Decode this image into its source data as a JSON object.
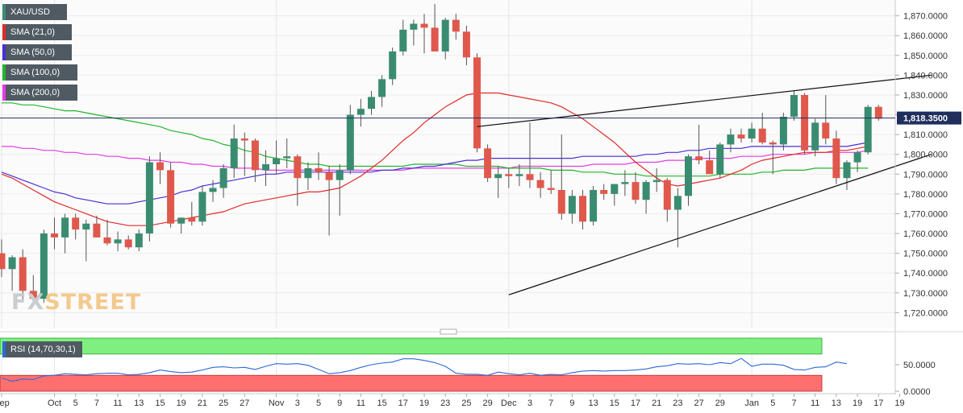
{
  "legend": [
    {
      "label": "XAU/USD",
      "color": "#3a8c71"
    },
    {
      "label": "SMA (21,0)",
      "color": "#e22a2a"
    },
    {
      "label": "SMA (50,0)",
      "color": "#4b2fd6"
    },
    {
      "label": "SMA (100,0)",
      "color": "#22b52b"
    },
    {
      "label": "SMA (200,0)",
      "color": "#e43ce4"
    }
  ],
  "watermark": {
    "part1": "FX",
    "part2": "STREET"
  },
  "rsi": {
    "label": "RSI (14,70,30,1)",
    "y_ticks": [
      "50.0000",
      "0.0000"
    ],
    "values": [
      25,
      19,
      23,
      22,
      29,
      30,
      33,
      32,
      31,
      33,
      34,
      34,
      31,
      32,
      35,
      40,
      37,
      35,
      36,
      40,
      45,
      46,
      44,
      45,
      41,
      47,
      52,
      51,
      52,
      49,
      41,
      33,
      35,
      39,
      45,
      50,
      53,
      55,
      61,
      61,
      58,
      54,
      47,
      34,
      32,
      32,
      30,
      36,
      33,
      31,
      34,
      30,
      32,
      31,
      35,
      38,
      39,
      38,
      39,
      39,
      40,
      42,
      46,
      48,
      52,
      51,
      52,
      50,
      54,
      52,
      62,
      47,
      51,
      51,
      49,
      41,
      40,
      45,
      46,
      55,
      52
    ]
  },
  "chart_data": {
    "type": "candlestick",
    "symbol": "XAU/USD",
    "last_price": "1,818.3500",
    "y_ticks": [
      "1,870.0000",
      "1,860.0000",
      "1,850.0000",
      "1,840.0000",
      "1,830.0000",
      "1,820.0000",
      "1,810.0000",
      "1,800.0000",
      "1,790.0000",
      "1,780.0000",
      "1,770.0000",
      "1,760.0000",
      "1,750.0000",
      "1,740.0000",
      "1,730.0000",
      "1,720.0000"
    ],
    "ylim": [
      1712,
      1878
    ],
    "x_labels": [
      {
        "label": "Sep",
        "i": 0
      },
      {
        "label": "Oct",
        "i": 5
      },
      {
        "label": "5",
        "i": 7
      },
      {
        "label": "7",
        "i": 9
      },
      {
        "label": "11",
        "i": 11
      },
      {
        "label": "13",
        "i": 13
      },
      {
        "label": "15",
        "i": 15
      },
      {
        "label": "19",
        "i": 17
      },
      {
        "label": "21",
        "i": 19
      },
      {
        "label": "25",
        "i": 21
      },
      {
        "label": "27",
        "i": 23
      },
      {
        "label": "Nov",
        "i": 26
      },
      {
        "label": "3",
        "i": 28
      },
      {
        "label": "5",
        "i": 30
      },
      {
        "label": "9",
        "i": 32
      },
      {
        "label": "11",
        "i": 34
      },
      {
        "label": "15",
        "i": 36
      },
      {
        "label": "17",
        "i": 38
      },
      {
        "label": "19",
        "i": 40
      },
      {
        "label": "23",
        "i": 42
      },
      {
        "label": "25",
        "i": 44
      },
      {
        "label": "29",
        "i": 46
      },
      {
        "label": "Dec",
        "i": 48
      },
      {
        "label": "3",
        "i": 50
      },
      {
        "label": "7",
        "i": 52
      },
      {
        "label": "9",
        "i": 54
      },
      {
        "label": "13",
        "i": 56
      },
      {
        "label": "15",
        "i": 58
      },
      {
        "label": "17",
        "i": 60
      },
      {
        "label": "21",
        "i": 62
      },
      {
        "label": "23",
        "i": 64
      },
      {
        "label": "27",
        "i": 66
      },
      {
        "label": "29",
        "i": 68
      },
      {
        "label": "Jan",
        "i": 71
      },
      {
        "label": "5",
        "i": 73
      },
      {
        "label": "7",
        "i": 75
      },
      {
        "label": "11",
        "i": 77
      },
      {
        "label": "13",
        "i": 79
      },
      {
        "label": "19",
        "i": 81
      },
      {
        "label": "17",
        "i": 83
      },
      {
        "label": "19",
        "i": 85
      }
    ],
    "candles": [
      {
        "o": 1750,
        "h": 1757,
        "l": 1738,
        "c": 1742
      },
      {
        "o": 1742,
        "h": 1749,
        "l": 1731,
        "c": 1748
      },
      {
        "o": 1748,
        "h": 1752,
        "l": 1726,
        "c": 1731
      },
      {
        "o": 1731,
        "h": 1739,
        "l": 1724,
        "c": 1727
      },
      {
        "o": 1727,
        "h": 1762,
        "l": 1725,
        "c": 1760
      },
      {
        "o": 1760,
        "h": 1768,
        "l": 1752,
        "c": 1758
      },
      {
        "o": 1758,
        "h": 1770,
        "l": 1750,
        "c": 1768
      },
      {
        "o": 1768,
        "h": 1770,
        "l": 1757,
        "c": 1762
      },
      {
        "o": 1762,
        "h": 1767,
        "l": 1746,
        "c": 1765
      },
      {
        "o": 1765,
        "h": 1769,
        "l": 1758,
        "c": 1758
      },
      {
        "o": 1758,
        "h": 1767,
        "l": 1754,
        "c": 1755
      },
      {
        "o": 1755,
        "h": 1761,
        "l": 1751,
        "c": 1757
      },
      {
        "o": 1757,
        "h": 1759,
        "l": 1752,
        "c": 1753
      },
      {
        "o": 1753,
        "h": 1762,
        "l": 1751,
        "c": 1760
      },
      {
        "o": 1760,
        "h": 1799,
        "l": 1756,
        "c": 1796
      },
      {
        "o": 1796,
        "h": 1801,
        "l": 1785,
        "c": 1792
      },
      {
        "o": 1792,
        "h": 1796,
        "l": 1763,
        "c": 1765
      },
      {
        "o": 1765,
        "h": 1768,
        "l": 1760,
        "c": 1768
      },
      {
        "o": 1768,
        "h": 1776,
        "l": 1764,
        "c": 1766
      },
      {
        "o": 1766,
        "h": 1784,
        "l": 1764,
        "c": 1781
      },
      {
        "o": 1781,
        "h": 1787,
        "l": 1776,
        "c": 1783
      },
      {
        "o": 1783,
        "h": 1795,
        "l": 1778,
        "c": 1793
      },
      {
        "o": 1793,
        "h": 1815,
        "l": 1788,
        "c": 1808
      },
      {
        "o": 1808,
        "h": 1811,
        "l": 1789,
        "c": 1807
      },
      {
        "o": 1807,
        "h": 1808,
        "l": 1786,
        "c": 1792
      },
      {
        "o": 1792,
        "h": 1802,
        "l": 1784,
        "c": 1795
      },
      {
        "o": 1795,
        "h": 1807,
        "l": 1790,
        "c": 1798
      },
      {
        "o": 1798,
        "h": 1808,
        "l": 1793,
        "c": 1799
      },
      {
        "o": 1799,
        "h": 1800,
        "l": 1774,
        "c": 1788
      },
      {
        "o": 1788,
        "h": 1796,
        "l": 1782,
        "c": 1793
      },
      {
        "o": 1793,
        "h": 1801,
        "l": 1787,
        "c": 1791
      },
      {
        "o": 1791,
        "h": 1794,
        "l": 1759,
        "c": 1787
      },
      {
        "o": 1787,
        "h": 1795,
        "l": 1769,
        "c": 1792
      },
      {
        "o": 1792,
        "h": 1825,
        "l": 1790,
        "c": 1820
      },
      {
        "o": 1820,
        "h": 1828,
        "l": 1814,
        "c": 1823
      },
      {
        "o": 1823,
        "h": 1832,
        "l": 1820,
        "c": 1829
      },
      {
        "o": 1829,
        "h": 1840,
        "l": 1824,
        "c": 1838
      },
      {
        "o": 1838,
        "h": 1854,
        "l": 1835,
        "c": 1852
      },
      {
        "o": 1852,
        "h": 1868,
        "l": 1850,
        "c": 1863
      },
      {
        "o": 1863,
        "h": 1868,
        "l": 1855,
        "c": 1866
      },
      {
        "o": 1866,
        "h": 1871,
        "l": 1851,
        "c": 1864
      },
      {
        "o": 1864,
        "h": 1876,
        "l": 1852,
        "c": 1852
      },
      {
        "o": 1852,
        "h": 1869,
        "l": 1848,
        "c": 1868
      },
      {
        "o": 1868,
        "h": 1871,
        "l": 1858,
        "c": 1862
      },
      {
        "o": 1862,
        "h": 1865,
        "l": 1845,
        "c": 1849
      },
      {
        "o": 1849,
        "h": 1851,
        "l": 1801,
        "c": 1803
      },
      {
        "o": 1803,
        "h": 1805,
        "l": 1786,
        "c": 1788
      },
      {
        "o": 1788,
        "h": 1794,
        "l": 1778,
        "c": 1790
      },
      {
        "o": 1790,
        "h": 1793,
        "l": 1783,
        "c": 1789
      },
      {
        "o": 1789,
        "h": 1795,
        "l": 1784,
        "c": 1790
      },
      {
        "o": 1790,
        "h": 1816,
        "l": 1783,
        "c": 1787
      },
      {
        "o": 1787,
        "h": 1791,
        "l": 1778,
        "c": 1783
      },
      {
        "o": 1783,
        "h": 1792,
        "l": 1780,
        "c": 1782
      },
      {
        "o": 1782,
        "h": 1810,
        "l": 1767,
        "c": 1770
      },
      {
        "o": 1770,
        "h": 1782,
        "l": 1765,
        "c": 1779
      },
      {
        "o": 1779,
        "h": 1782,
        "l": 1762,
        "c": 1766
      },
      {
        "o": 1766,
        "h": 1784,
        "l": 1764,
        "c": 1782
      },
      {
        "o": 1782,
        "h": 1785,
        "l": 1777,
        "c": 1780
      },
      {
        "o": 1780,
        "h": 1785,
        "l": 1774,
        "c": 1785
      },
      {
        "o": 1785,
        "h": 1792,
        "l": 1779,
        "c": 1786
      },
      {
        "o": 1786,
        "h": 1791,
        "l": 1775,
        "c": 1777
      },
      {
        "o": 1777,
        "h": 1787,
        "l": 1770,
        "c": 1786
      },
      {
        "o": 1786,
        "h": 1793,
        "l": 1781,
        "c": 1787
      },
      {
        "o": 1787,
        "h": 1788,
        "l": 1766,
        "c": 1772
      },
      {
        "o": 1772,
        "h": 1783,
        "l": 1753,
        "c": 1779
      },
      {
        "o": 1779,
        "h": 1800,
        "l": 1774,
        "c": 1799
      },
      {
        "o": 1799,
        "h": 1815,
        "l": 1795,
        "c": 1797
      },
      {
        "o": 1797,
        "h": 1802,
        "l": 1790,
        "c": 1790
      },
      {
        "o": 1790,
        "h": 1806,
        "l": 1788,
        "c": 1805
      },
      {
        "o": 1805,
        "h": 1813,
        "l": 1801,
        "c": 1810
      },
      {
        "o": 1810,
        "h": 1813,
        "l": 1806,
        "c": 1808
      },
      {
        "o": 1808,
        "h": 1816,
        "l": 1806,
        "c": 1813
      },
      {
        "o": 1813,
        "h": 1821,
        "l": 1805,
        "c": 1806
      },
      {
        "o": 1806,
        "h": 1807,
        "l": 1790,
        "c": 1805
      },
      {
        "o": 1805,
        "h": 1821,
        "l": 1802,
        "c": 1819
      },
      {
        "o": 1819,
        "h": 1832,
        "l": 1817,
        "c": 1830
      },
      {
        "o": 1830,
        "h": 1831,
        "l": 1800,
        "c": 1802
      },
      {
        "o": 1802,
        "h": 1818,
        "l": 1799,
        "c": 1816
      },
      {
        "o": 1816,
        "h": 1830,
        "l": 1805,
        "c": 1808
      },
      {
        "o": 1808,
        "h": 1812,
        "l": 1785,
        "c": 1788
      },
      {
        "o": 1788,
        "h": 1797,
        "l": 1782,
        "c": 1796
      },
      {
        "o": 1796,
        "h": 1802,
        "l": 1791,
        "c": 1801
      },
      {
        "o": 1801,
        "h": 1825,
        "l": 1800,
        "c": 1824
      },
      {
        "o": 1824,
        "h": 1825,
        "l": 1817,
        "c": 1818
      }
    ],
    "sma21": [
      1790,
      1788,
      1785,
      1782,
      1779,
      1776,
      1774,
      1772,
      1770,
      1768,
      1766,
      1765,
      1764,
      1764,
      1764,
      1765,
      1766,
      1767,
      1768,
      1769,
      1770,
      1771,
      1773,
      1775,
      1776,
      1777,
      1778,
      1779,
      1780,
      1781,
      1781,
      1782,
      1783,
      1786,
      1789,
      1793,
      1797,
      1802,
      1807,
      1811,
      1816,
      1820,
      1824,
      1827,
      1830,
      1831,
      1831,
      1831,
      1830,
      1829,
      1828,
      1827,
      1826,
      1824,
      1821,
      1818,
      1814,
      1810,
      1806,
      1801,
      1796,
      1792,
      1788,
      1785,
      1784,
      1785,
      1786,
      1787,
      1788,
      1790,
      1792,
      1795,
      1797,
      1798,
      1799,
      1800,
      1801,
      1801,
      1801,
      1802,
      1802,
      1803,
      1804
    ],
    "sma50": [
      1791,
      1789,
      1787,
      1785,
      1783,
      1781,
      1780,
      1778,
      1777,
      1776,
      1775,
      1775,
      1775,
      1776,
      1777,
      1778,
      1779,
      1781,
      1782,
      1784,
      1785,
      1786,
      1787,
      1788,
      1789,
      1790,
      1790,
      1791,
      1791,
      1791,
      1791,
      1791,
      1791,
      1791,
      1791,
      1791,
      1792,
      1792,
      1793,
      1793,
      1794,
      1794,
      1795,
      1796,
      1797,
      1797,
      1798,
      1798,
      1798,
      1798,
      1798,
      1798,
      1798,
      1798,
      1798,
      1799,
      1799,
      1799,
      1799,
      1799,
      1799,
      1800,
      1800,
      1801,
      1801,
      1802,
      1802,
      1803,
      1803,
      1803,
      1803,
      1804,
      1804,
      1804,
      1804,
      1804,
      1804,
      1804,
      1804,
      1804,
      1804,
      1805,
      1806
    ],
    "sma100": [
      1826,
      1826,
      1825,
      1825,
      1824,
      1823,
      1822,
      1822,
      1821,
      1820,
      1819,
      1818,
      1817,
      1816,
      1815,
      1814,
      1812,
      1811,
      1810,
      1808,
      1807,
      1805,
      1804,
      1802,
      1801,
      1799,
      1798,
      1797,
      1796,
      1795,
      1795,
      1794,
      1794,
      1794,
      1794,
      1794,
      1794,
      1794,
      1794,
      1795,
      1795,
      1795,
      1795,
      1795,
      1794,
      1794,
      1794,
      1794,
      1793,
      1793,
      1793,
      1793,
      1792,
      1792,
      1792,
      1791,
      1791,
      1791,
      1790,
      1790,
      1790,
      1789,
      1789,
      1789,
      1789,
      1789,
      1789,
      1789,
      1790,
      1790,
      1790,
      1790,
      1791,
      1791,
      1792,
      1792,
      1792,
      1793,
      1793,
      1793,
      1793,
      1793,
      1793
    ],
    "sma200": [
      1804,
      1804,
      1803,
      1803,
      1802,
      1802,
      1801,
      1801,
      1800,
      1800,
      1799,
      1799,
      1798,
      1798,
      1797,
      1797,
      1796,
      1796,
      1795,
      1795,
      1794,
      1794,
      1793,
      1793,
      1793,
      1792,
      1792,
      1792,
      1792,
      1792,
      1792,
      1792,
      1792,
      1792,
      1792,
      1792,
      1792,
      1792,
      1792,
      1793,
      1793,
      1793,
      1793,
      1793,
      1793,
      1793,
      1793,
      1793,
      1793,
      1794,
      1794,
      1794,
      1794,
      1794,
      1794,
      1794,
      1795,
      1795,
      1795,
      1795,
      1796,
      1796,
      1796,
      1797,
      1797,
      1797,
      1798,
      1798,
      1798,
      1798,
      1799,
      1799,
      1799,
      1800,
      1800,
      1800,
      1800,
      1801,
      1801,
      1801,
      1801,
      1801,
      1802
    ],
    "trendlines": [
      {
        "from": {
          "i": 45,
          "p": 1814
        },
        "to": {
          "i": 88,
          "p": 1840
        }
      },
      {
        "from": {
          "i": 48,
          "p": 1729
        },
        "to": {
          "i": 88,
          "p": 1800
        }
      }
    ]
  }
}
